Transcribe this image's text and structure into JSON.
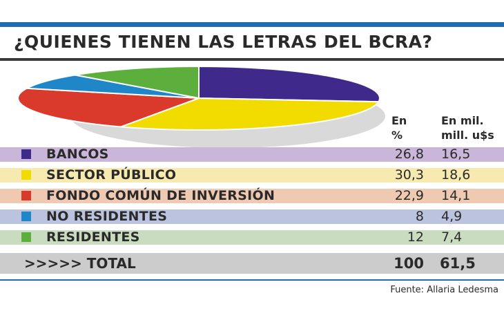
{
  "title": "¿QUIENES TIENEN LAS LETRAS DEL BCRA?",
  "columns": {
    "pct_line1": "En",
    "pct_line2": "%",
    "val_line1": "En mil.",
    "val_line2": "mill. u$s"
  },
  "rows": [
    {
      "label": "BANCOS",
      "pct": "26,8",
      "val": "16,5",
      "color": "#3f2a8c",
      "band": "#c9b6d9"
    },
    {
      "label": "SECTOR PÚBLICO",
      "pct": "30,3",
      "val": "18,6",
      "color": "#f2dc00",
      "band": "#f6eab0"
    },
    {
      "label": "FONDO COMÚN DE INVERSIÓN",
      "pct": "22,9",
      "val": "14,1",
      "color": "#d93a2b",
      "band": "#efc9b2"
    },
    {
      "label": "NO RESIDENTES",
      "pct": "8",
      "val": "4,9",
      "color": "#1f86c8",
      "band": "#bcc3de"
    },
    {
      "label": "RESIDENTES",
      "pct": "12",
      "val": "7,4",
      "color": "#5caf3c",
      "band": "#c9dcc0"
    }
  ],
  "total": {
    "label": ">>>>> TOTAL",
    "pct": "100",
    "val": "61,5"
  },
  "source": "Fuente: Allaria Ledesma",
  "chart_data": {
    "type": "pie",
    "title": "¿QUIENES TIENEN LAS LETRAS DEL BCRA?",
    "categories": [
      "BANCOS",
      "SECTOR PÚBLICO",
      "FONDO COMÚN DE INVERSIÓN",
      "NO RESIDENTES",
      "RESIDENTES"
    ],
    "series": [
      {
        "name": "En %",
        "values": [
          26.8,
          30.3,
          22.9,
          8,
          12
        ]
      },
      {
        "name": "En mil. mill. u$s",
        "values": [
          16.5,
          18.6,
          14.1,
          4.9,
          7.4
        ]
      }
    ],
    "colors": [
      "#3f2a8c",
      "#f2dc00",
      "#d93a2b",
      "#1f86c8",
      "#5caf3c"
    ],
    "total": {
      "pct": 100,
      "value": 61.5
    }
  }
}
